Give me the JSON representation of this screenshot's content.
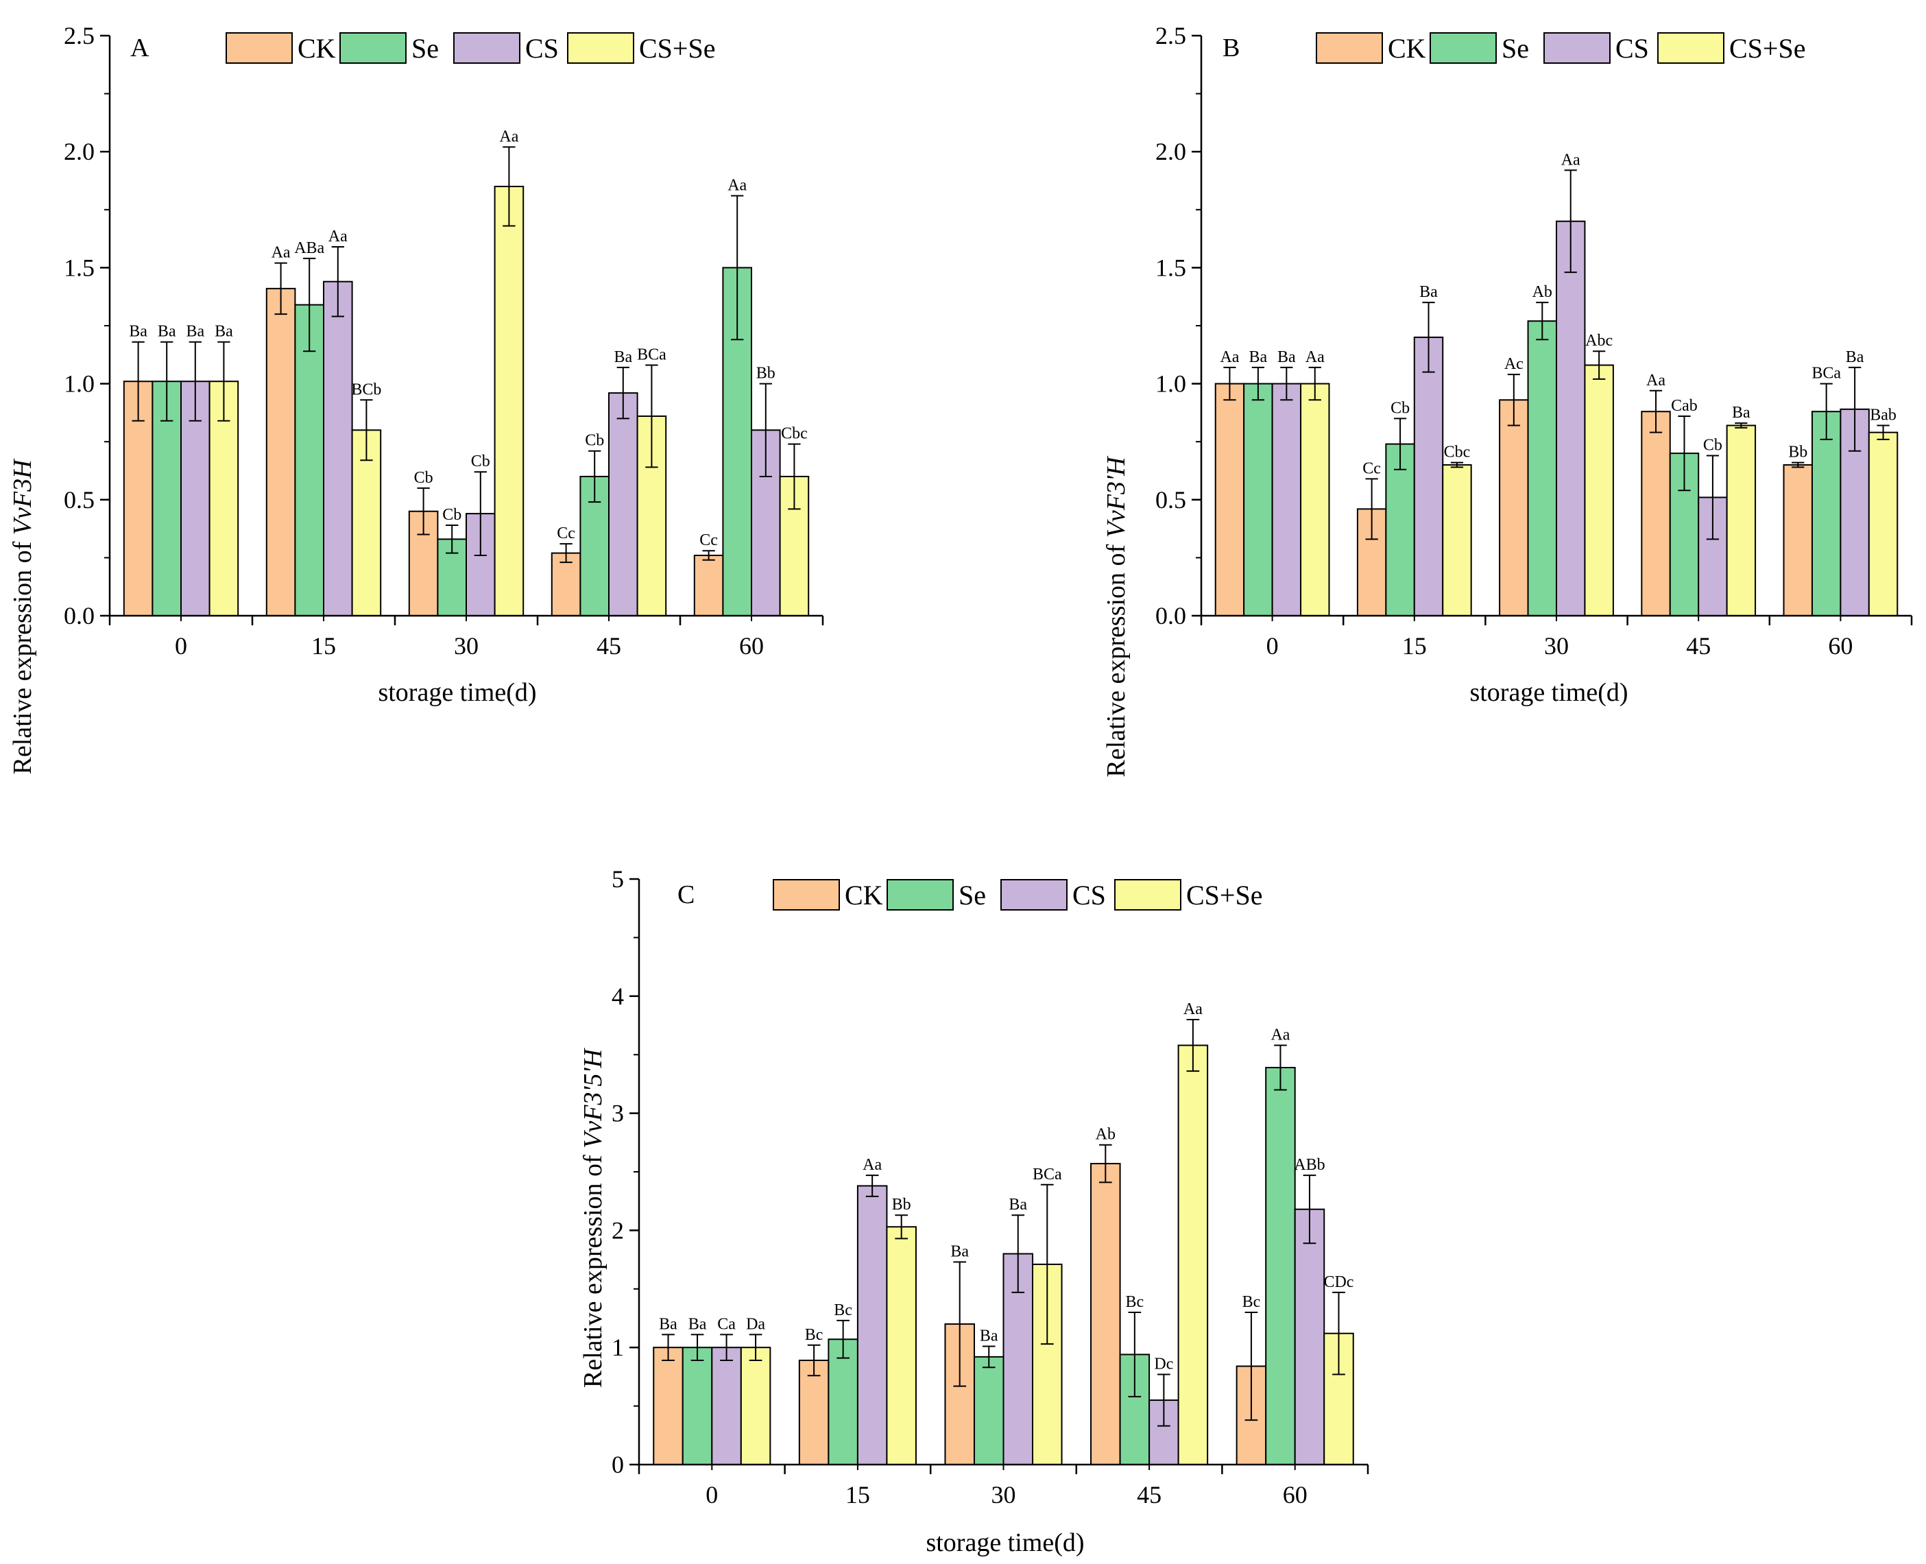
{
  "chart_data": [
    {
      "type": "bar",
      "panel": "A",
      "gene_label": "VvF3H",
      "ylabel_prefix": "Relative expression of ",
      "xlabel": "storage time(d)",
      "categories": [
        "0",
        "15",
        "30",
        "45",
        "60"
      ],
      "ylim": [
        0,
        2.5
      ],
      "yticks": [
        0.0,
        0.5,
        1.0,
        1.5,
        2.0,
        2.5
      ],
      "ytick_labels": [
        "0.0",
        "0.5",
        "1.0",
        "1.5",
        "2.0",
        "2.5"
      ],
      "legend_position": "top-center",
      "series": [
        {
          "name": "CK",
          "color": "#FCC594",
          "values": [
            1.01,
            1.41,
            0.45,
            0.27,
            0.26
          ],
          "errors": [
            0.17,
            0.11,
            0.1,
            0.04,
            0.02
          ],
          "labels": [
            "Ba",
            "Aa",
            "Cb",
            "Cc",
            "Cc"
          ]
        },
        {
          "name": "Se",
          "color": "#7ED79A",
          "values": [
            1.01,
            1.34,
            0.33,
            0.6,
            1.5
          ],
          "errors": [
            0.17,
            0.2,
            0.06,
            0.11,
            0.31
          ],
          "labels": [
            "Ba",
            "ABa",
            "Cb",
            "Cb",
            "Aa"
          ]
        },
        {
          "name": "CS",
          "color": "#C8B4DA",
          "values": [
            1.01,
            1.44,
            0.44,
            0.96,
            0.8
          ],
          "errors": [
            0.17,
            0.15,
            0.18,
            0.11,
            0.2
          ],
          "labels": [
            "Ba",
            "Aa",
            "Cb",
            "Ba",
            "Bb"
          ]
        },
        {
          "name": "CS+Se",
          "color": "#FAFA9A",
          "values": [
            1.01,
            0.8,
            1.85,
            0.86,
            0.6
          ],
          "errors": [
            0.17,
            0.13,
            0.17,
            0.22,
            0.14
          ],
          "labels": [
            "Ba",
            "BCb",
            "Aa",
            "BCa",
            "Cbc"
          ]
        }
      ]
    },
    {
      "type": "bar",
      "panel": "B",
      "gene_label": "VvF3'H",
      "ylabel_prefix": "Relative expression of ",
      "xlabel": "storage time(d)",
      "categories": [
        "0",
        "15",
        "30",
        "45",
        "60"
      ],
      "ylim": [
        0,
        2.5
      ],
      "yticks": [
        0.0,
        0.5,
        1.0,
        1.5,
        2.0,
        2.5
      ],
      "ytick_labels": [
        "0.0",
        "0.5",
        "1.0",
        "1.5",
        "2.0",
        "2.5"
      ],
      "legend_position": "top-center",
      "series": [
        {
          "name": "CK",
          "color": "#FCC594",
          "values": [
            1.0,
            0.46,
            0.93,
            0.88,
            0.65
          ],
          "errors": [
            0.07,
            0.13,
            0.11,
            0.09,
            0.01
          ],
          "labels": [
            "Aa",
            "Cc",
            "Ac",
            "Aa",
            "Bb"
          ]
        },
        {
          "name": "Se",
          "color": "#7ED79A",
          "values": [
            1.0,
            0.74,
            1.27,
            0.7,
            0.88
          ],
          "errors": [
            0.07,
            0.11,
            0.08,
            0.16,
            0.12
          ],
          "labels": [
            "Ba",
            "Cb",
            "Ab",
            "Cab",
            "BCa"
          ]
        },
        {
          "name": "CS",
          "color": "#C8B4DA",
          "values": [
            1.0,
            1.2,
            1.7,
            0.51,
            0.89
          ],
          "errors": [
            0.07,
            0.15,
            0.22,
            0.18,
            0.18
          ],
          "labels": [
            "Ba",
            "Ba",
            "Aa",
            "Cb",
            "Ba"
          ]
        },
        {
          "name": "CS+Se",
          "color": "#FAFA9A",
          "values": [
            1.0,
            0.65,
            1.08,
            0.82,
            0.79
          ],
          "errors": [
            0.07,
            0.01,
            0.06,
            0.01,
            0.03
          ],
          "labels": [
            "Aa",
            "Cbc",
            "Abc",
            "Ba",
            "Bab"
          ]
        }
      ]
    },
    {
      "type": "bar",
      "panel": "C",
      "gene_label": "VvF3'5'H",
      "ylabel_prefix": "Relative expression of ",
      "xlabel": "storage time(d)",
      "categories": [
        "0",
        "15",
        "30",
        "45",
        "60"
      ],
      "ylim": [
        0,
        5
      ],
      "yticks": [
        0,
        1,
        2,
        3,
        4,
        5
      ],
      "ytick_labels": [
        "0",
        "1",
        "2",
        "3",
        "4",
        "5"
      ],
      "legend_position": "top-center",
      "series": [
        {
          "name": "CK",
          "color": "#FCC594",
          "values": [
            1.0,
            0.89,
            1.2,
            2.57,
            0.84
          ],
          "errors": [
            0.11,
            0.13,
            0.53,
            0.16,
            0.46
          ],
          "labels": [
            "Ba",
            "Bc",
            "Ba",
            "Ab",
            "Bc"
          ]
        },
        {
          "name": "Se",
          "color": "#7ED79A",
          "values": [
            1.0,
            1.07,
            0.92,
            0.94,
            3.39
          ],
          "errors": [
            0.11,
            0.16,
            0.09,
            0.36,
            0.19
          ],
          "labels": [
            "Ba",
            "Bc",
            "Ba",
            "Bc",
            "Aa"
          ]
        },
        {
          "name": "CS",
          "color": "#C8B4DA",
          "values": [
            1.0,
            2.38,
            1.8,
            0.55,
            2.18
          ],
          "errors": [
            0.11,
            0.09,
            0.33,
            0.22,
            0.29
          ],
          "labels": [
            "Ca",
            "Aa",
            "Ba",
            "Dc",
            "ABb"
          ]
        },
        {
          "name": "CS+Se",
          "color": "#FAFA9A",
          "values": [
            1.0,
            2.03,
            1.71,
            3.58,
            1.12
          ],
          "errors": [
            0.11,
            0.1,
            0.68,
            0.22,
            0.35
          ],
          "labels": [
            "Da",
            "Bb",
            "BCa",
            "Aa",
            "CDc"
          ]
        }
      ]
    }
  ]
}
